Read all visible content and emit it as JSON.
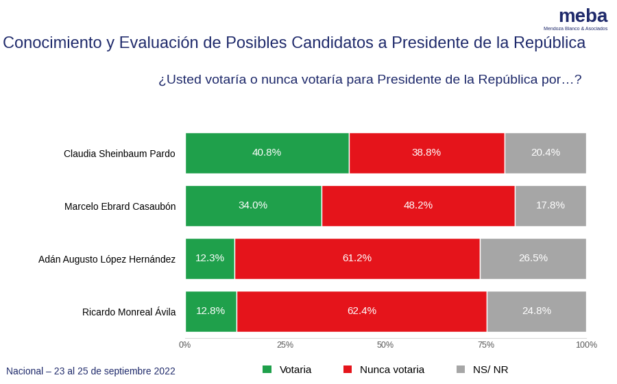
{
  "chart_data": {
    "type": "bar",
    "orientation": "horizontal",
    "stacked": true,
    "data_labels": true,
    "grid": false,
    "legend": "lower center",
    "title": "Conocimiento y Evaluación de Posibles Candidatos a Presidente de la República",
    "subtitle": "¿Usted votaría o nunca votaría para Presidente de la República por…?",
    "logo": "meba",
    "logo_subtitle": "Mendoza Blanco & Asociados",
    "note": "Nacional – 23 al 25 de septiembre 2022",
    "categories": [
      "Claudia Sheinbaum Pardo",
      "Marcelo Ebrard Casaubón",
      "Adán Augusto López Hernández",
      "Ricardo Monreal Ávila"
    ],
    "series": [
      {
        "name": "Votaria",
        "color": "#1fa04b",
        "values": [
          40.8,
          34.0,
          12.3,
          12.8
        ],
        "value_labels": [
          "40.8%",
          "34.0%",
          "12.3%",
          "12.8%"
        ]
      },
      {
        "name": "Nunca votaria",
        "color": "#e5141b",
        "values": [
          38.8,
          48.2,
          61.2,
          62.4
        ],
        "value_labels": [
          "38.8%",
          "48.2%",
          "61.2%",
          "62.4%"
        ]
      },
      {
        "name": "NS/ NR",
        "color": "#a6a6a6",
        "values": [
          20.4,
          17.8,
          26.5,
          24.8
        ],
        "value_labels": [
          "20.4%",
          "17.8%",
          "26.5%",
          "24.8%"
        ]
      }
    ],
    "xlim": [
      0,
      100
    ],
    "xticks": [
      {
        "value": 0,
        "label": "0%"
      },
      {
        "value": 25,
        "label": "25%"
      },
      {
        "value": 50,
        "label": "50%"
      },
      {
        "value": 75,
        "label": "75%"
      },
      {
        "value": 100,
        "label": "100%"
      }
    ]
  }
}
